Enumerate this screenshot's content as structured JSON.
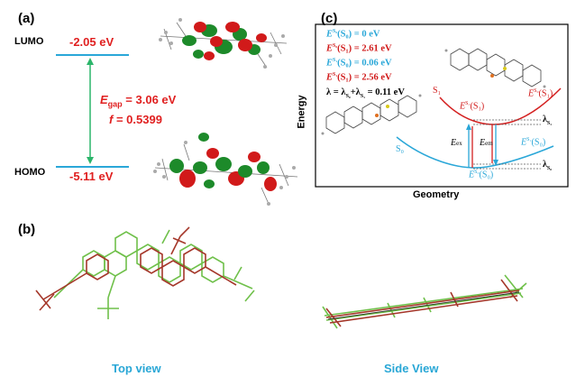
{
  "panel_a": {
    "label": "(a)",
    "lumo_label": "LUMO",
    "homo_label": "HOMO",
    "lumo_energy": "-2.05 eV",
    "homo_energy": "-5.11 eV",
    "gap_symbol": "E",
    "gap_sub": "gap",
    "gap_value": " = 3.06 eV",
    "f_symbol": "f",
    "f_value": " = 0.5399"
  },
  "panel_b": {
    "label": "(b)",
    "top_view": "Top view",
    "side_view": "Side View"
  },
  "panel_c": {
    "label": "(c)",
    "y_label": "Energy",
    "x_label": "Geometry",
    "legend": {
      "l1_rhs": "(S₀) = 0 eV",
      "l2_rhs": "(S₁) = 2.61 eV",
      "l3_rhs": "(S₀) = 0.06 eV",
      "l4_rhs": "(S₁) = 2.56 eV",
      "l5": "λ = λ",
      "l5_mid": "+λ",
      "l5_end": " = 0.11 eV"
    },
    "curve_labels": {
      "s1": "S₁",
      "s0": "S₀",
      "es1_s1": "(S₁)",
      "es1_s0": "(S₀)",
      "es0_s1": "(S₁)",
      "es0_s0": "(S₀)",
      "e_ex": "ex",
      "e_em": "em",
      "lambda_s1": "λ",
      "lambda_s0": "λ"
    },
    "colors": {
      "s1": "#d42020",
      "s0": "#2aa7d8"
    }
  },
  "colors": {
    "level_line": "#2aa7d8",
    "arrow": "#2bb56a",
    "red_text": "#e02020",
    "blue_text": "#29a7d6"
  }
}
